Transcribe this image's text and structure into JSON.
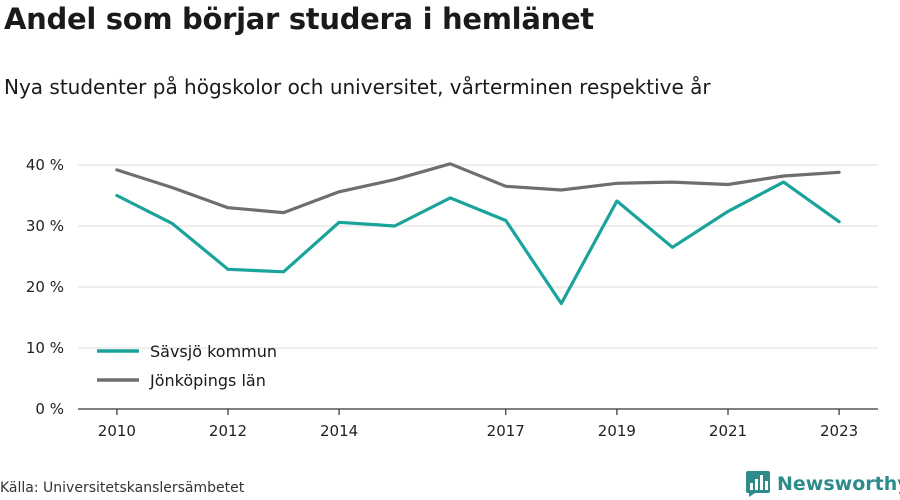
{
  "header": {
    "title": "Andel som börjar studera i hemlänet",
    "subtitle": "Nya studenter på högskolor och universitet, vårterminen respektive år"
  },
  "footer": {
    "source": "Källa: Universitetskanslersämbetet",
    "brand": "Newsworthy",
    "brand_icon": "bar-chart-logo-icon",
    "brand_color": "#2e8b8b"
  },
  "chart_data": {
    "type": "line",
    "title": "Andel som börjar studera i hemlänet",
    "subtitle": "Nya studenter på högskolor och universitet, vårterminen respektive år",
    "xlabel": "",
    "ylabel": "",
    "x": [
      2010,
      2011,
      2012,
      2013,
      2014,
      2015,
      2016,
      2017,
      2018,
      2019,
      2020,
      2021,
      2022,
      2023
    ],
    "x_ticks": [
      2010,
      2012,
      2014,
      2017,
      2019,
      2021,
      2023
    ],
    "y_ticks": [
      0,
      10,
      20,
      30,
      40
    ],
    "y_tick_labels": [
      "0 %",
      "10 %",
      "20 %",
      "30 %",
      "40 %"
    ],
    "xlim": [
      2009.3,
      2023.7
    ],
    "ylim": [
      0,
      40
    ],
    "grid": "horizontal",
    "legend_position": "bottom-left",
    "series": [
      {
        "name": "Sävsjö kommun",
        "color": "#1aa39b",
        "values": [
          35.0,
          30.4,
          22.9,
          22.5,
          30.6,
          30.0,
          34.6,
          30.9,
          17.3,
          34.1,
          26.5,
          32.4,
          37.2,
          30.7
        ]
      },
      {
        "name": "Jönköpings län",
        "color": "#6e6e6e",
        "values": [
          39.2,
          36.3,
          33.0,
          32.2,
          35.6,
          37.6,
          40.2,
          36.5,
          35.9,
          37.0,
          37.2,
          36.8,
          38.2,
          38.8
        ]
      }
    ]
  }
}
